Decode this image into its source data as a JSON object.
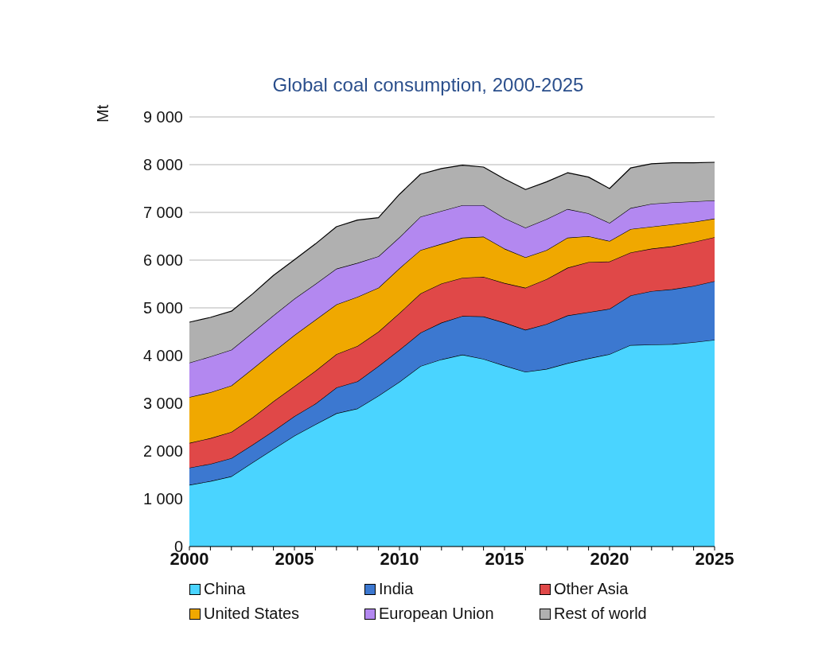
{
  "chart_data": {
    "type": "area",
    "title": "Global coal consumption, 2000-2025",
    "ylabel": "Mt",
    "stacked": true,
    "grid": "y",
    "legend": "bottom",
    "x": [
      2000,
      2001,
      2002,
      2003,
      2004,
      2005,
      2006,
      2007,
      2008,
      2009,
      2010,
      2011,
      2012,
      2013,
      2014,
      2015,
      2016,
      2017,
      2018,
      2019,
      2020,
      2021,
      2022,
      2023,
      2024,
      2025
    ],
    "xlim": [
      2000,
      2025
    ],
    "xticks": [
      2000,
      {
        "value": 2001,
        "label": null
      },
      {
        "value": 2002,
        "label": null
      },
      {
        "value": 2003,
        "label": null
      },
      {
        "value": 2004,
        "label": null
      },
      2005,
      {
        "value": 2006,
        "label": null
      },
      {
        "value": 2007,
        "label": null
      },
      {
        "value": 2008,
        "label": null
      },
      {
        "value": 2009,
        "label": null
      },
      2010,
      {
        "value": 2011,
        "label": null
      },
      {
        "value": 2012,
        "label": null
      },
      {
        "value": 2013,
        "label": null
      },
      {
        "value": 2014,
        "label": null
      },
      2015,
      {
        "value": 2016,
        "label": null
      },
      {
        "value": 2017,
        "label": null
      },
      {
        "value": 2018,
        "label": null
      },
      {
        "value": 2019,
        "label": null
      },
      2020,
      {
        "value": 2021,
        "label": null
      },
      {
        "value": 2022,
        "label": null
      },
      {
        "value": 2023,
        "label": null
      },
      {
        "value": 2024,
        "label": null
      },
      2025
    ],
    "ylim": [
      0,
      9000
    ],
    "yticks": [
      0,
      {
        "value": 1000,
        "label": "1 000"
      },
      {
        "value": 2000,
        "label": "2 000"
      },
      {
        "value": 3000,
        "label": "3 000"
      },
      {
        "value": 4000,
        "label": "4 000"
      },
      {
        "value": 5000,
        "label": "5 000"
      },
      {
        "value": 6000,
        "label": "6 000"
      },
      {
        "value": 7000,
        "label": "7 000"
      },
      {
        "value": 8000,
        "label": "8 000"
      },
      {
        "value": 9000,
        "label": "9 000"
      }
    ],
    "series": [
      {
        "name": "China",
        "color": "#4ad4ff",
        "values": [
          1290,
          1370,
          1470,
          1760,
          2040,
          2320,
          2560,
          2790,
          2890,
          3160,
          3450,
          3780,
          3920,
          4020,
          3930,
          3790,
          3660,
          3720,
          3840,
          3940,
          4030,
          4220,
          4230,
          4240,
          4280,
          4330
        ]
      },
      {
        "name": "India",
        "color": "#3c78d0",
        "values": [
          360,
          360,
          380,
          370,
          380,
          410,
          430,
          540,
          570,
          620,
          670,
          700,
          770,
          810,
          890,
          900,
          880,
          940,
          1000,
          970,
          950,
          1040,
          1120,
          1150,
          1180,
          1230
        ]
      },
      {
        "name": "Other Asia",
        "color": "#e04848",
        "values": [
          520,
          540,
          550,
          570,
          620,
          630,
          690,
          700,
          740,
          720,
          770,
          820,
          820,
          800,
          830,
          830,
          880,
          940,
          1000,
          1050,
          990,
          900,
          890,
          900,
          920,
          920
        ]
      },
      {
        "name": "United States",
        "color": "#f0a800",
        "values": [
          960,
          960,
          970,
          1020,
          1040,
          1070,
          1070,
          1040,
          1030,
          920,
          940,
          910,
          830,
          840,
          840,
          720,
          640,
          610,
          630,
          540,
          430,
          490,
          460,
          460,
          420,
          390
        ]
      },
      {
        "name": "European Union",
        "color": "#b388f0",
        "values": [
          720,
          750,
          750,
          760,
          760,
          760,
          750,
          750,
          710,
          660,
          650,
          700,
          690,
          680,
          660,
          640,
          620,
          650,
          600,
          480,
          380,
          440,
          480,
          460,
          430,
          380
        ]
      },
      {
        "name": "Rest of world",
        "color": "#b0b0b0",
        "values": [
          850,
          820,
          810,
          810,
          840,
          820,
          840,
          880,
          900,
          810,
          900,
          890,
          890,
          840,
          800,
          820,
          800,
          780,
          760,
          760,
          720,
          840,
          840,
          830,
          810,
          800
        ]
      }
    ]
  }
}
